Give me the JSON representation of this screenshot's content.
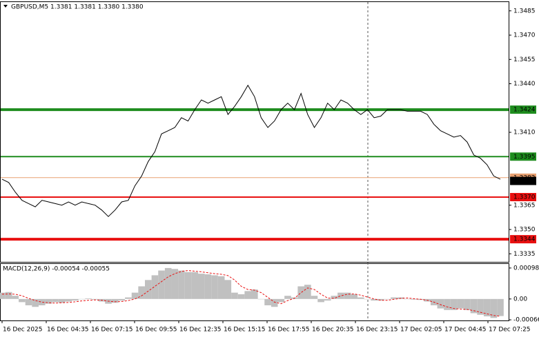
{
  "chart_data": [
    {
      "type": "line",
      "title": "GBPUSD,M5  1.3381 1.3381 1.3380 1.3380",
      "color": "#000000",
      "values": [
        1.3381,
        1.3379,
        1.3373,
        1.3368,
        1.3366,
        1.3364,
        1.3368,
        1.3367,
        1.3366,
        1.3365,
        1.3367,
        1.3365,
        1.3367,
        1.3366,
        1.3365,
        1.3362,
        1.3358,
        1.3362,
        1.3367,
        1.3368,
        1.3377,
        1.3383,
        1.3392,
        1.3398,
        1.3409,
        1.3411,
        1.3413,
        1.3419,
        1.3417,
        1.3424,
        1.343,
        1.3428,
        1.343,
        1.3432,
        1.3421,
        1.3426,
        1.3432,
        1.3439,
        1.3432,
        1.3419,
        1.3413,
        1.3417,
        1.3424,
        1.3428,
        1.3424,
        1.3434,
        1.3421,
        1.3413,
        1.3419,
        1.3428,
        1.3424,
        1.343,
        1.3428,
        1.3424,
        1.3421,
        1.3424,
        1.3419,
        1.342,
        1.3424,
        1.3424,
        1.3424,
        1.3423,
        1.3423,
        1.3423,
        1.3421,
        1.3415,
        1.3411,
        1.3409,
        1.3407,
        1.3408,
        1.3404,
        1.3396,
        1.3394,
        1.339,
        1.3383,
        1.3381
      ],
      "ylim": [
        1.333,
        1.349
      ],
      "yticks": [
        1.3485,
        {
          "value": 1.347,
          "label": "1.3470"
        },
        1.3455,
        {
          "value": 1.344,
          "label": "1.3440"
        },
        {
          "value": 1.341,
          "label": "1.3410"
        },
        1.3365,
        {
          "value": 1.335,
          "label": "1.3350"
        },
        1.3335
      ],
      "levels": [
        {
          "value": 1.3424,
          "color": "#1e8c1e",
          "width": 4
        },
        {
          "value": 1.3395,
          "color": "#1e8c1e",
          "width": 2
        },
        {
          "value": 1.3382,
          "color": "#e8a070",
          "width": 1
        },
        {
          "value": 1.337,
          "label": "1.3370",
          "color": "#e81010",
          "width": 2
        },
        {
          "value": 1.3344,
          "color": "#e81010",
          "width": 4
        }
      ],
      "current_price": {
        "value": 1.338,
        "label": "1.3380"
      },
      "xtick_labels": [
        "16 Dec 2025",
        "16 Dec 04:35",
        "16 Dec 07:15",
        "16 Dec 09:55",
        "16 Dec 12:35",
        "16 Dec 15:15",
        "16 Dec 17:55",
        "16 Dec 20:35",
        "16 Dec 23:15",
        "17 Dec 02:05",
        "17 Dec 04:45",
        "17 Dec 07:25"
      ]
    },
    {
      "type": "macd",
      "title": "MACD(12,26,9) -0.00054 -0.00055",
      "color": "#c0c0c0",
      "signal_color": "#e81010",
      "values": [
        0.0002,
        0.00022,
        0.0001,
        -0.0001,
        -0.0002,
        -0.00025,
        -0.0002,
        -0.00015,
        -0.0001,
        -0.00012,
        -8e-05,
        -5e-05,
        0,
        2e-05,
        -2e-05,
        -8e-05,
        -0.00015,
        -0.00012,
        -5e-05,
        5e-05,
        0.0002,
        0.0004,
        0.0006,
        0.00075,
        0.0009,
        0.00098,
        0.00095,
        0.0009,
        0.00085,
        0.00085,
        0.0008,
        0.00078,
        0.00075,
        0.00072,
        0.0006,
        0.0002,
        0.00015,
        0.00025,
        0.0003,
        0,
        -0.0002,
        -0.00025,
        -0.0001,
        0.0001,
        5e-05,
        0.0004,
        0.00045,
        0.0001,
        -0.0001,
        -5e-05,
        0.0001,
        0.0002,
        0.0002,
        0.00015,
        5e-05,
        0,
        -5e-05,
        -5e-05,
        0,
        5e-05,
        5e-05,
        0,
        -2e-05,
        -3e-05,
        -8e-05,
        -0.0002,
        -0.0003,
        -0.00035,
        -0.00035,
        -0.0003,
        -0.00035,
        -0.00045,
        -0.0005,
        -0.00055,
        -0.0006,
        -0.00054
      ],
      "signal": [
        0.00015,
        0.00016,
        0.00015,
        0.0001,
        2e-05,
        -5e-05,
        -0.0001,
        -0.00012,
        -0.00013,
        -0.00012,
        -0.00011,
        -9e-05,
        -6e-05,
        -4e-05,
        -3e-05,
        -4e-05,
        -7e-05,
        -9e-05,
        -8e-05,
        -5e-05,
        0,
        0.0001,
        0.00025,
        0.0004,
        0.00055,
        0.0007,
        0.0008,
        0.00087,
        0.0009,
        0.00088,
        0.00086,
        0.00083,
        0.0008,
        0.00078,
        0.00074,
        0.0006,
        0.0004,
        0.0003,
        0.00028,
        0.0002,
        5e-05,
        -0.0001,
        -0.00015,
        -5e-05,
        2e-05,
        0.0002,
        0.00035,
        0.0003,
        0.00015,
        3e-05,
        2e-05,
        0.0001,
        0.00015,
        0.00016,
        0.00012,
        6e-05,
        0,
        -4e-05,
        -4e-05,
        -1e-05,
        2e-05,
        3e-05,
        1e-05,
        -1e-05,
        -4e-05,
        -0.0001,
        -0.00018,
        -0.00025,
        -0.0003,
        -0.00032,
        -0.00033,
        -0.00037,
        -0.00042,
        -0.00047,
        -0.00052,
        -0.00055
      ],
      "ylim": [
        -0.00068,
        0.00113
      ],
      "yticks": [
        0.00098,
        {
          "value": 0,
          "label": "0.00"
        },
        -0.00066
      ]
    }
  ]
}
